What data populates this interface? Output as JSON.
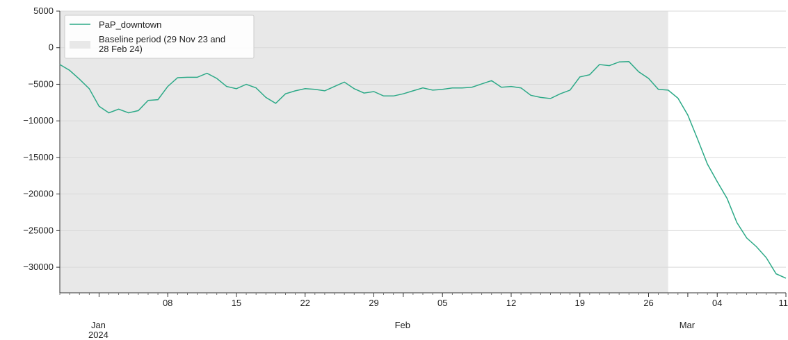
{
  "chart_data": {
    "type": "line",
    "title": "",
    "xlabel": "",
    "ylabel": "",
    "ylim": [
      -33500,
      5000
    ],
    "xlim": [
      "2023-12-28",
      "2024-03-11"
    ],
    "grid": {
      "y": true,
      "x": false,
      "color": "#d9d9d9"
    },
    "legend_position": "top-left",
    "y_ticks": [
      5000,
      0,
      -5000,
      -10000,
      -15000,
      -20000,
      -25000,
      -30000
    ],
    "y_tick_labels": [
      "5000",
      "0",
      "−5000",
      "−10000",
      "−15000",
      "−20000",
      "−25000",
      "−30000"
    ],
    "x_major_ticks": [
      "2024-01-08",
      "2024-01-15",
      "2024-01-22",
      "2024-01-29",
      "2024-02-05",
      "2024-02-12",
      "2024-02-19",
      "2024-02-26",
      "2024-03-04",
      "2024-03-11"
    ],
    "x_major_labels": [
      "08",
      "15",
      "22",
      "29",
      "05",
      "12",
      "19",
      "26",
      "04",
      "11"
    ],
    "month_labels": [
      {
        "date": "2024-01-01",
        "label": "Jan",
        "sublabel": "2024"
      },
      {
        "date": "2024-02-01",
        "label": "Feb",
        "sublabel": ""
      },
      {
        "date": "2024-03-01",
        "label": "Mar",
        "sublabel": ""
      }
    ],
    "baseline_period": {
      "name": "Baseline period (29 Nov 23 and 28 Feb 24)",
      "name_lines": [
        "Baseline period (29 Nov 23 and",
        "28 Feb 24)"
      ],
      "start": "2023-12-28",
      "end": "2024-02-28",
      "color": "#e8e8e8"
    },
    "series": [
      {
        "name": "PaP_downtown",
        "color": "#2ca987",
        "x": [
          "2023-12-28",
          "2023-12-29",
          "2023-12-30",
          "2023-12-31",
          "2024-01-01",
          "2024-01-02",
          "2024-01-03",
          "2024-01-04",
          "2024-01-05",
          "2024-01-06",
          "2024-01-07",
          "2024-01-08",
          "2024-01-09",
          "2024-01-10",
          "2024-01-11",
          "2024-01-12",
          "2024-01-13",
          "2024-01-14",
          "2024-01-15",
          "2024-01-16",
          "2024-01-17",
          "2024-01-18",
          "2024-01-19",
          "2024-01-20",
          "2024-01-21",
          "2024-01-22",
          "2024-01-23",
          "2024-01-24",
          "2024-01-25",
          "2024-01-26",
          "2024-01-27",
          "2024-01-28",
          "2024-01-29",
          "2024-01-30",
          "2024-01-31",
          "2024-02-01",
          "2024-02-02",
          "2024-02-03",
          "2024-02-04",
          "2024-02-05",
          "2024-02-06",
          "2024-02-07",
          "2024-02-08",
          "2024-02-09",
          "2024-02-10",
          "2024-02-11",
          "2024-02-12",
          "2024-02-13",
          "2024-02-14",
          "2024-02-15",
          "2024-02-16",
          "2024-02-17",
          "2024-02-18",
          "2024-02-19",
          "2024-02-20",
          "2024-02-21",
          "2024-02-22",
          "2024-02-23",
          "2024-02-24",
          "2024-02-25",
          "2024-02-26",
          "2024-02-27",
          "2024-02-28",
          "2024-02-29",
          "2024-03-01",
          "2024-03-02",
          "2024-03-03",
          "2024-03-04",
          "2024-03-05",
          "2024-03-06",
          "2024-03-07",
          "2024-03-08",
          "2024-03-09",
          "2024-03-10",
          "2024-03-11"
        ],
        "values": [
          -2300,
          -3100,
          -4300,
          -5600,
          -8000,
          -8900,
          -8400,
          -8900,
          -8600,
          -7200,
          -7100,
          -5300,
          -4100,
          -4050,
          -4050,
          -3500,
          -4200,
          -5300,
          -5600,
          -5000,
          -5500,
          -6800,
          -7600,
          -6300,
          -5900,
          -5600,
          -5700,
          -5900,
          -5300,
          -4700,
          -5600,
          -6200,
          -6000,
          -6600,
          -6600,
          -6300,
          -5900,
          -5500,
          -5800,
          -5700,
          -5500,
          -5500,
          -5400,
          -4950,
          -4500,
          -5400,
          -5300,
          -5500,
          -6500,
          -6800,
          -6950,
          -6300,
          -5800,
          -4000,
          -3700,
          -2300,
          -2450,
          -1950,
          -1900,
          -3300,
          -4200,
          -5700,
          -5800,
          -6900,
          -9200,
          -12500,
          -15900,
          -18300,
          -20600,
          -23900,
          -26000,
          -27200,
          -28700,
          -30900,
          -31500
        ]
      }
    ]
  }
}
